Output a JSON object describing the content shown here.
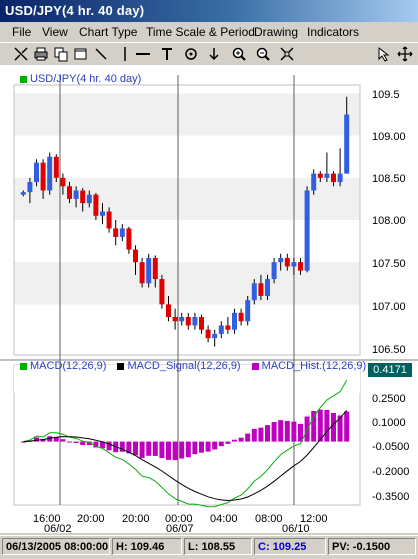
{
  "window": {
    "title": "USD/JPY(4 hr. 40 day)"
  },
  "menu": [
    "File",
    "View",
    "Chart Type",
    "Time Scale & Period",
    "Drawing",
    "Indicators"
  ],
  "toolbar": [
    "crosshair-icon",
    "print-icon",
    "copy-icon",
    "zoom-box-icon",
    "line-icon",
    "horizontal-line-icon",
    "vertical-line-icon",
    "target-icon",
    "arrow-down-icon",
    "zoom-in-icon",
    "zoom-out-icon",
    "fit-icon",
    "cursor-icon",
    "move-icon"
  ],
  "price_panel": {
    "legend": "USD/JPY(4 hr. 40 day)",
    "legend_color": "#00b000",
    "y_ticks": [
      "109.5",
      "109.00",
      "108.50",
      "108.00",
      "107.50",
      "107.00",
      "106.50"
    ],
    "up_color": "#3060e0",
    "down_color": "#e00000"
  },
  "macd_panel": {
    "legend": [
      {
        "label": "MACD(12,26,9)",
        "color": "#00b000"
      },
      {
        "label": "MACD_Signal(12,26,9)",
        "color": "#000000"
      },
      {
        "label": "MACD_Hist.(12,26,9)",
        "color": "#c000c0"
      }
    ],
    "y_ticks": [
      "0.2500",
      "0.1000",
      "-0.0500",
      "-0.2000",
      "-0.3500"
    ],
    "last_value": "0.4171"
  },
  "x_axis": {
    "times": [
      "16:00",
      "20:00",
      "20:00",
      "00:00",
      "04:00",
      "08:00",
      "12:00"
    ],
    "dates": [
      "06/02",
      "06/07",
      "06/10"
    ]
  },
  "status": {
    "datetime": "06/13/2005 08:00:00",
    "high": "H: 109.46",
    "low": "L: 108.55",
    "close": "C: 109.25",
    "pv": "PV: -0.1500"
  },
  "chart_data": {
    "type": "candlestick",
    "ylim": [
      106.4,
      109.6
    ],
    "candles": [
      [
        108.3,
        108.35,
        108.28,
        108.33
      ],
      [
        108.33,
        108.5,
        108.2,
        108.45
      ],
      [
        108.45,
        108.72,
        108.4,
        108.68
      ],
      [
        108.68,
        108.72,
        108.25,
        108.35
      ],
      [
        108.35,
        108.8,
        108.3,
        108.75
      ],
      [
        108.75,
        108.78,
        108.45,
        108.5
      ],
      [
        108.5,
        108.55,
        108.3,
        108.4
      ],
      [
        108.4,
        108.45,
        108.2,
        108.25
      ],
      [
        108.25,
        108.4,
        108.15,
        108.35
      ],
      [
        108.35,
        108.38,
        108.1,
        108.2
      ],
      [
        108.2,
        108.35,
        108.15,
        108.3
      ],
      [
        108.3,
        108.32,
        108.0,
        108.05
      ],
      [
        108.05,
        108.2,
        107.95,
        108.1
      ],
      [
        108.1,
        108.15,
        107.85,
        107.9
      ],
      [
        107.9,
        108.0,
        107.7,
        107.8
      ],
      [
        107.8,
        107.95,
        107.75,
        107.9
      ],
      [
        107.9,
        107.92,
        107.6,
        107.65
      ],
      [
        107.65,
        107.7,
        107.35,
        107.5
      ],
      [
        107.5,
        107.55,
        107.2,
        107.25
      ],
      [
        107.25,
        107.6,
        107.2,
        107.55
      ],
      [
        107.55,
        107.58,
        107.2,
        107.3
      ],
      [
        107.3,
        107.35,
        106.95,
        107.0
      ],
      [
        107.0,
        107.1,
        106.8,
        106.85
      ],
      [
        106.85,
        106.95,
        106.7,
        106.8
      ],
      [
        106.8,
        106.9,
        106.75,
        106.85
      ],
      [
        106.85,
        106.9,
        106.7,
        106.75
      ],
      [
        106.75,
        106.9,
        106.7,
        106.85
      ],
      [
        106.85,
        106.88,
        106.65,
        106.7
      ],
      [
        106.7,
        106.75,
        106.55,
        106.6
      ],
      [
        106.6,
        106.7,
        106.5,
        106.65
      ],
      [
        106.65,
        106.8,
        106.6,
        106.75
      ],
      [
        106.75,
        106.85,
        106.65,
        106.7
      ],
      [
        106.7,
        106.95,
        106.65,
        106.9
      ],
      [
        106.9,
        106.95,
        106.75,
        106.8
      ],
      [
        106.8,
        107.1,
        106.75,
        107.05
      ],
      [
        107.05,
        107.3,
        107.0,
        107.25
      ],
      [
        107.25,
        107.35,
        107.05,
        107.1
      ],
      [
        107.1,
        107.35,
        107.05,
        107.3
      ],
      [
        107.3,
        107.55,
        107.25,
        107.5
      ],
      [
        107.5,
        107.6,
        107.4,
        107.55
      ],
      [
        107.55,
        107.6,
        107.4,
        107.45
      ],
      [
        107.45,
        107.55,
        107.35,
        107.5
      ],
      [
        107.5,
        107.55,
        107.35,
        107.4
      ],
      [
        107.4,
        108.4,
        107.38,
        108.35
      ],
      [
        108.35,
        108.6,
        108.3,
        108.55
      ],
      [
        108.55,
        108.58,
        108.45,
        108.5
      ],
      [
        108.5,
        108.8,
        108.45,
        108.55
      ],
      [
        108.55,
        108.58,
        108.4,
        108.45
      ],
      [
        108.45,
        108.85,
        108.4,
        108.55
      ],
      [
        108.55,
        109.46,
        108.55,
        109.25
      ]
    ]
  }
}
